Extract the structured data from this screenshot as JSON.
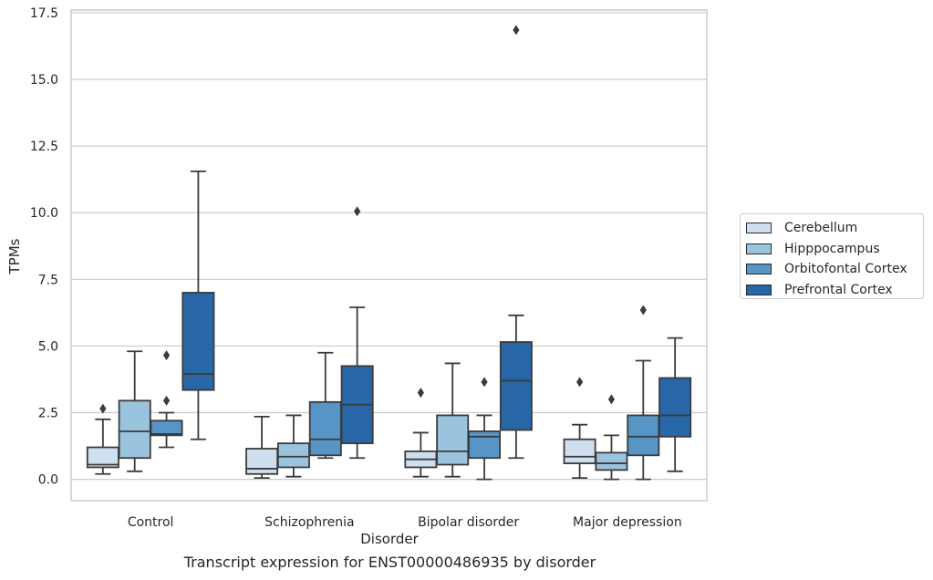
{
  "chart_data": {
    "type": "box",
    "caption": "Transcript expression for ENST00000486935 by disorder",
    "xlabel": "Disorder",
    "ylabel": "TPMs",
    "ylim": [
      -0.8,
      17.6
    ],
    "yticks": [
      "0.0",
      "2.5",
      "5.0",
      "7.5",
      "10.0",
      "12.5",
      "15.0",
      "17.5"
    ],
    "grid": true,
    "legend_position": "right",
    "categories": [
      "Control",
      "Schizophrenia",
      "Bipolar disorder",
      "Major depression"
    ],
    "series": [
      {
        "name": "Cerebellum",
        "color": "#cfdff0",
        "boxes": [
          {
            "whisker_low": 0.2,
            "q1": 0.45,
            "median": 0.55,
            "q3": 1.2,
            "whisker_high": 2.25,
            "outliers": [
              2.65
            ]
          },
          {
            "whisker_low": 0.05,
            "q1": 0.2,
            "median": 0.4,
            "q3": 1.15,
            "whisker_high": 2.35,
            "outliers": []
          },
          {
            "whisker_low": 0.1,
            "q1": 0.45,
            "median": 0.75,
            "q3": 1.05,
            "whisker_high": 1.75,
            "outliers": [
              3.25
            ]
          },
          {
            "whisker_low": 0.05,
            "q1": 0.6,
            "median": 0.85,
            "q3": 1.5,
            "whisker_high": 2.05,
            "outliers": [
              3.65
            ]
          }
        ]
      },
      {
        "name": "Hipppocampus",
        "color": "#9ac4de",
        "boxes": [
          {
            "whisker_low": 0.3,
            "q1": 0.8,
            "median": 1.8,
            "q3": 2.95,
            "whisker_high": 4.8,
            "outliers": []
          },
          {
            "whisker_low": 0.1,
            "q1": 0.45,
            "median": 0.85,
            "q3": 1.35,
            "whisker_high": 2.4,
            "outliers": []
          },
          {
            "whisker_low": 0.1,
            "q1": 0.55,
            "median": 1.05,
            "q3": 2.4,
            "whisker_high": 4.35,
            "outliers": []
          },
          {
            "whisker_low": 0.0,
            "q1": 0.35,
            "median": 0.6,
            "q3": 1.0,
            "whisker_high": 1.65,
            "outliers": [
              3.0
            ]
          }
        ]
      },
      {
        "name": "Orbitofontal Cortex",
        "color": "#5695c6",
        "boxes": [
          {
            "whisker_low": 1.2,
            "q1": 1.65,
            "median": 1.7,
            "q3": 2.2,
            "whisker_high": 2.5,
            "outliers": [
              2.95,
              4.65
            ]
          },
          {
            "whisker_low": 0.8,
            "q1": 0.9,
            "median": 1.5,
            "q3": 2.9,
            "whisker_high": 4.75,
            "outliers": []
          },
          {
            "whisker_low": 0.0,
            "q1": 0.8,
            "median": 1.6,
            "q3": 1.8,
            "whisker_high": 2.4,
            "outliers": [
              3.65
            ]
          },
          {
            "whisker_low": 0.0,
            "q1": 0.9,
            "median": 1.6,
            "q3": 2.4,
            "whisker_high": 4.45,
            "outliers": [
              6.35
            ]
          }
        ]
      },
      {
        "name": "Prefrontal Cortex",
        "color": "#2767a8",
        "boxes": [
          {
            "whisker_low": 1.5,
            "q1": 3.35,
            "median": 3.95,
            "q3": 7.0,
            "whisker_high": 11.55,
            "outliers": []
          },
          {
            "whisker_low": 0.8,
            "q1": 1.35,
            "median": 2.8,
            "q3": 4.25,
            "whisker_high": 6.45,
            "outliers": [
              10.05
            ]
          },
          {
            "whisker_low": 0.8,
            "q1": 1.85,
            "median": 3.7,
            "q3": 5.15,
            "whisker_high": 6.15,
            "outliers": [
              16.85
            ]
          },
          {
            "whisker_low": 0.3,
            "q1": 1.6,
            "median": 2.4,
            "q3": 3.8,
            "whisker_high": 5.3,
            "outliers": []
          }
        ]
      }
    ]
  }
}
